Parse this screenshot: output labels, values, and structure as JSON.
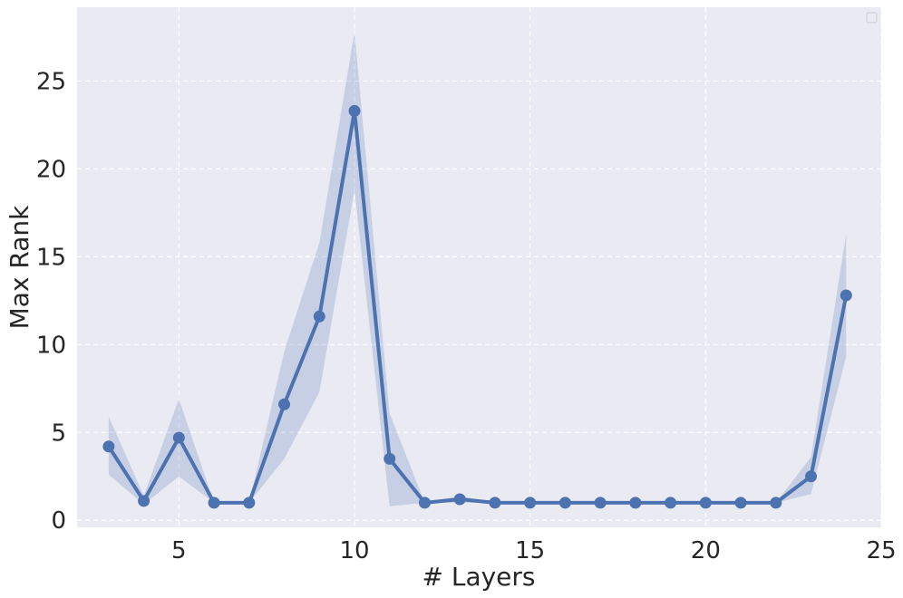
{
  "chart_data": {
    "type": "line",
    "title": "",
    "xlabel": "# Layers",
    "ylabel": "Max Rank",
    "xlim": [
      2.1,
      25
    ],
    "ylim": [
      -0.4,
      29.2
    ],
    "xticks": [
      5,
      10,
      15,
      20,
      25
    ],
    "yticks": [
      0,
      5,
      10,
      15,
      20,
      25
    ],
    "xtick_labels": [
      "5",
      "10",
      "15",
      "20",
      "25"
    ],
    "ytick_labels": [
      "0",
      "5",
      "10",
      "15",
      "20",
      "25"
    ],
    "grid": true,
    "legend": "top-right",
    "colors": {
      "background": "#eaeaf2",
      "grid": "#ffffff",
      "line": "#4c72b0",
      "band": "#4c72b0"
    },
    "series": [
      {
        "x": [
          3,
          4,
          5,
          6,
          7,
          8,
          9,
          10,
          11,
          12,
          13,
          14,
          15,
          16,
          17,
          18,
          19,
          20,
          21,
          22,
          23,
          24
        ],
        "y": [
          4.2,
          1.1,
          4.7,
          1.0,
          1.0,
          6.6,
          11.6,
          23.3,
          3.5,
          1.0,
          1.2,
          1.0,
          1.0,
          1.0,
          1.0,
          1.0,
          1.0,
          1.0,
          1.0,
          1.0,
          2.5,
          12.8
        ],
        "lower": [
          2.6,
          0.9,
          2.5,
          1.0,
          1.0,
          3.5,
          7.3,
          18.8,
          0.8,
          1.0,
          1.0,
          1.0,
          1.0,
          1.0,
          1.0,
          1.0,
          1.0,
          1.0,
          1.0,
          1.0,
          1.5,
          9.3
        ],
        "upper": [
          5.9,
          1.4,
          6.9,
          1.0,
          1.0,
          9.6,
          15.8,
          27.8,
          6.1,
          1.0,
          1.4,
          1.0,
          1.0,
          1.0,
          1.0,
          1.0,
          1.0,
          1.0,
          1.0,
          1.0,
          3.6,
          16.3
        ]
      }
    ]
  }
}
